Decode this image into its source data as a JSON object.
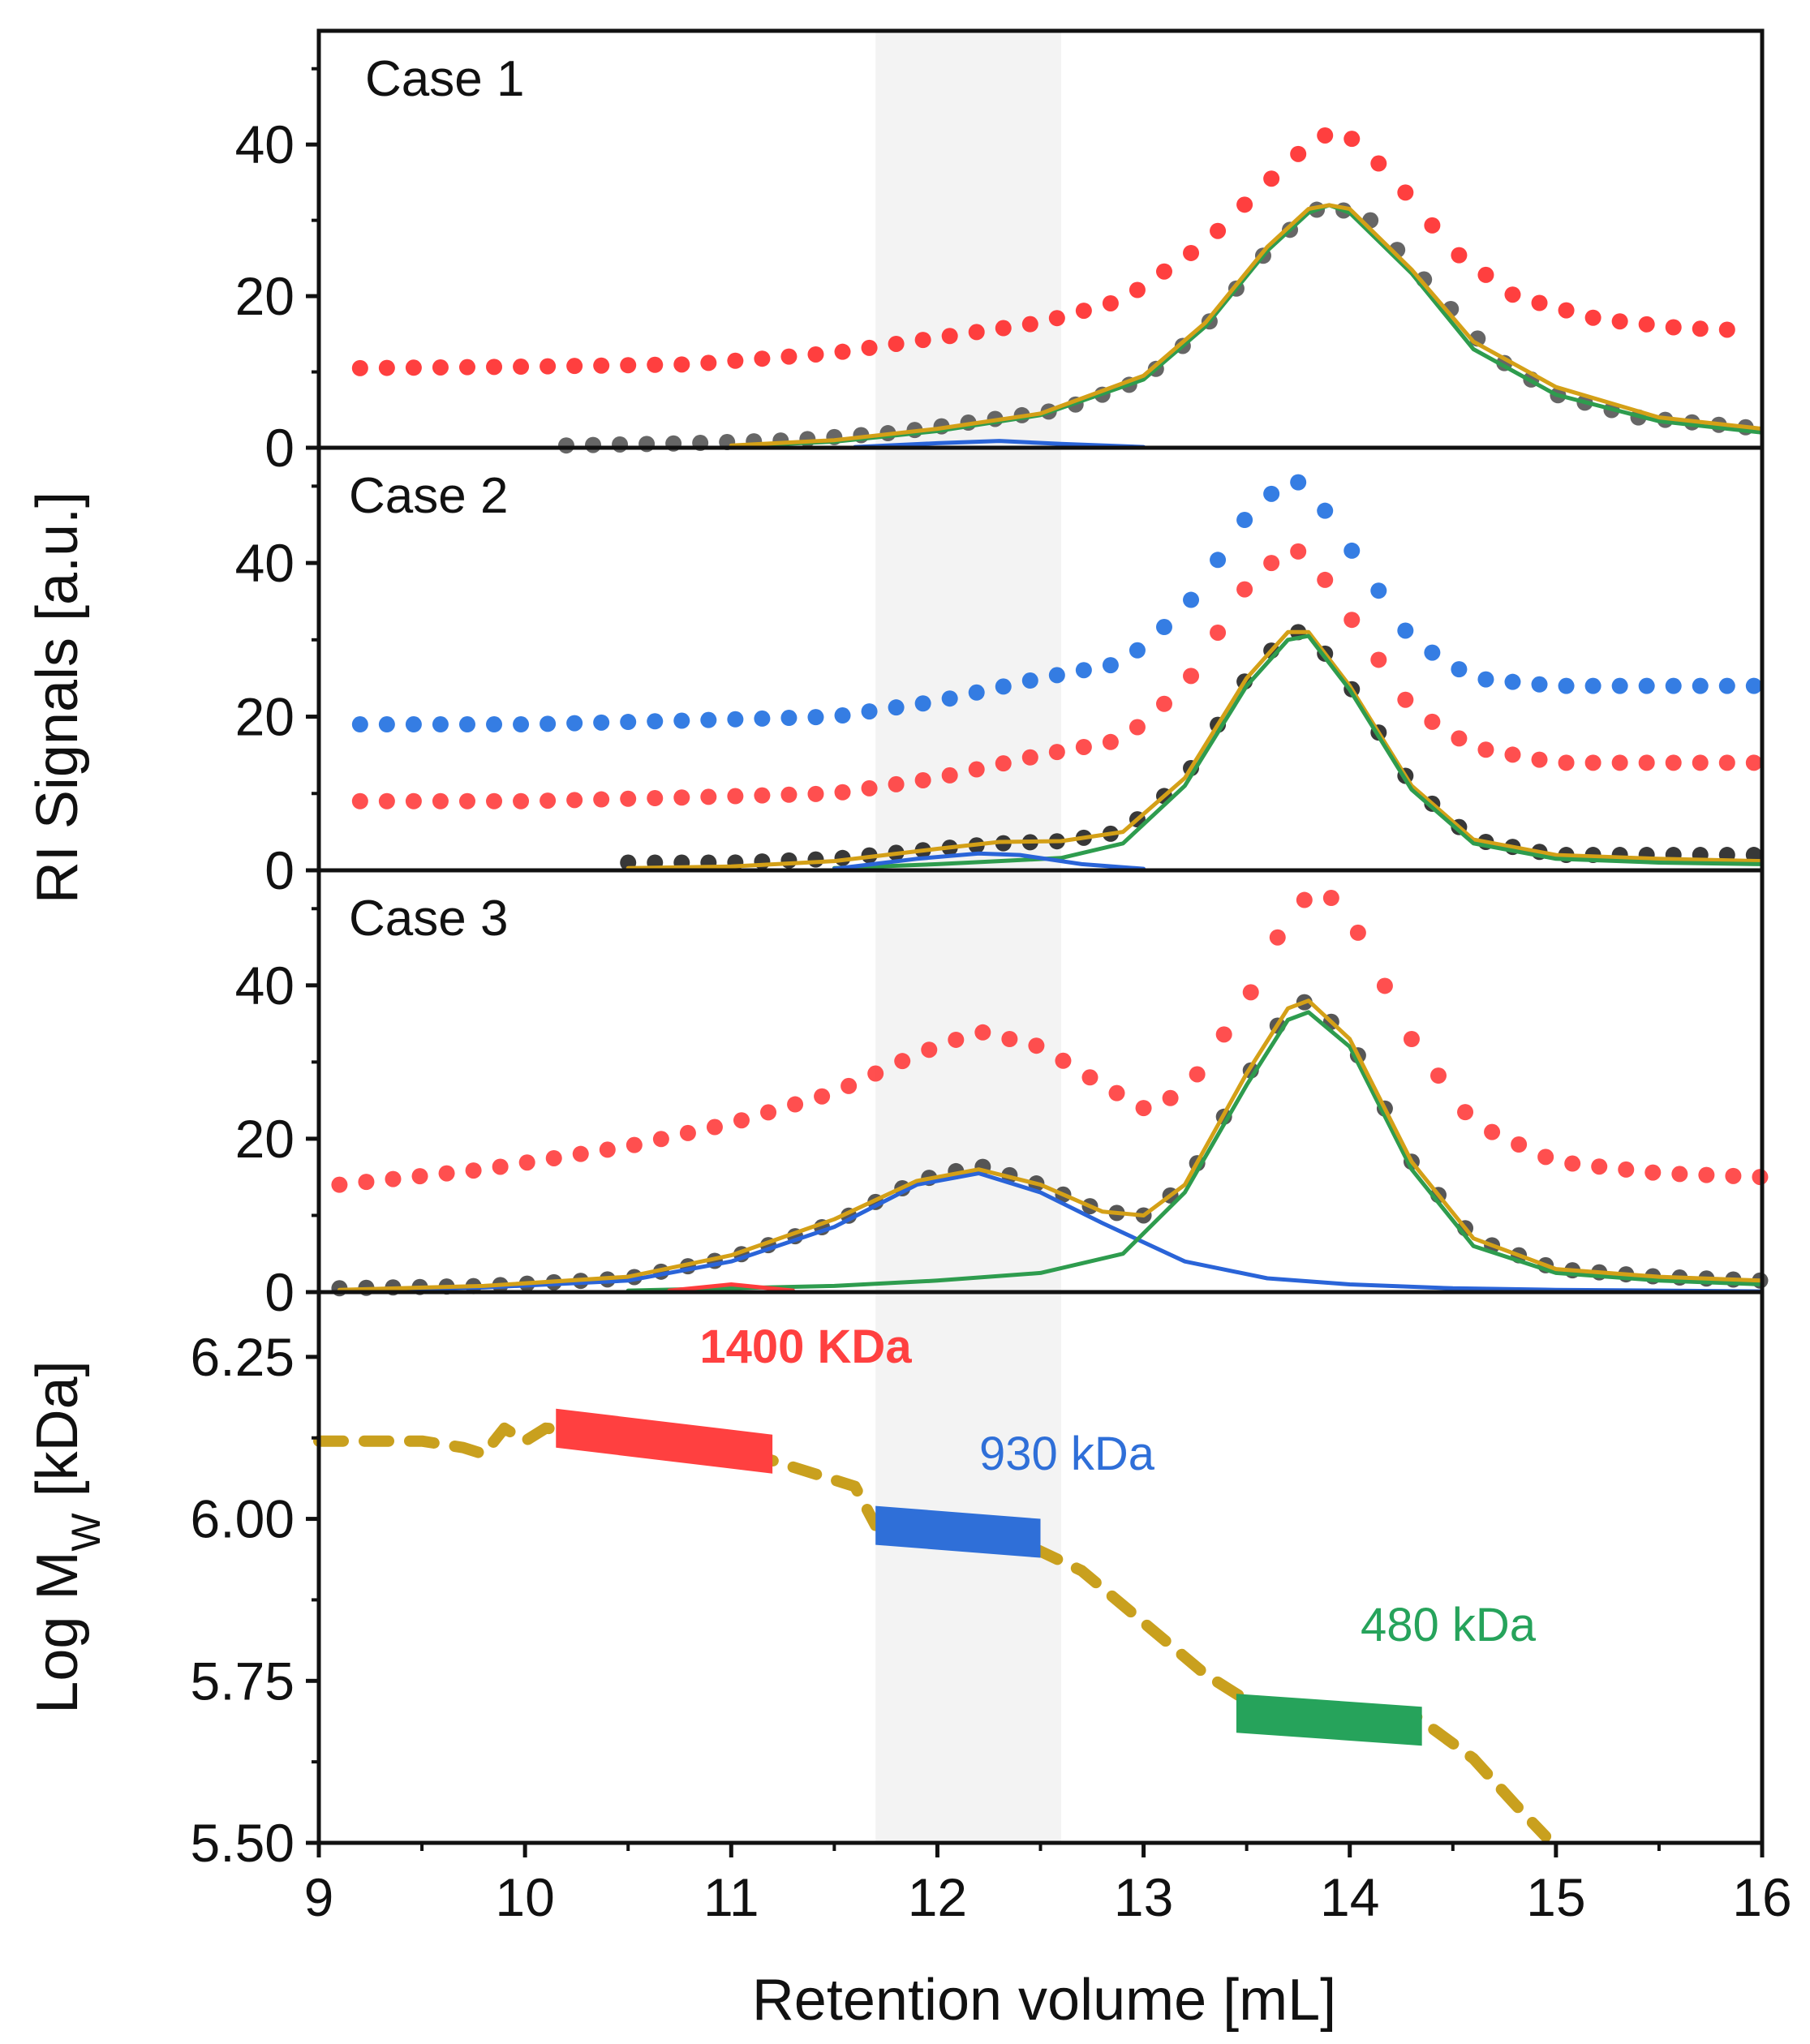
{
  "chart_data": {
    "type": "line",
    "xlabel": "Retention volume [mL]",
    "xlim": [
      9,
      16
    ],
    "x_ticks": [
      "9",
      "10",
      "11",
      "12",
      "13",
      "14",
      "15",
      "16"
    ],
    "shaded_region_x": [
      11.7,
      12.6
    ],
    "shared_ylabel": "RI Signals [a.u.]",
    "panels": [
      {
        "label": "Case 1",
        "ylim": [
          0,
          55
        ],
        "y_ticks": [
          "0",
          "20",
          "40"
        ],
        "series": [
          {
            "color": "#ff2a2a",
            "style": "dots",
            "x": [
              9.2,
              10.0,
              10.8,
              11.5,
              12.0,
              12.5,
              12.9,
              13.3,
              13.6,
              13.8,
              13.9,
              14.0,
              14.2,
              14.5,
              14.8,
              15.2,
              15.6,
              15.9
            ],
            "y": [
              10.5,
              10.7,
              11.0,
              12.5,
              14.5,
              16.5,
              19.5,
              27,
              35,
              40,
              41.5,
              41,
              36,
              26,
              20,
              17,
              15.8,
              15.5
            ]
          },
          {
            "color": "#555555",
            "style": "dots",
            "x": [
              10.2,
              10.8,
              11.3,
              11.8,
              12.2,
              12.6,
              13.0,
              13.3,
              13.6,
              13.8,
              13.9,
              14.1,
              14.4,
              14.7,
              15.0,
              15.4,
              15.8,
              16.0
            ],
            "y": [
              0.3,
              0.6,
              1.0,
              2,
              3.5,
              5,
              9,
              16,
              26,
              31,
              32,
              30,
              21,
              12,
              7,
              4,
              3,
              2.5
            ]
          },
          {
            "color": "#2e9c4e",
            "style": "line",
            "x": [
              11.0,
              11.5,
              12.0,
              12.5,
              13.0,
              13.3,
              13.6,
              13.8,
              13.9,
              14.0,
              14.3,
              14.6,
              15.0,
              15.5,
              16.0
            ],
            "y": [
              0.2,
              0.8,
              2.2,
              4.3,
              9,
              16,
              26,
              31,
              32,
              31,
              23,
              13,
              7,
              3.5,
              2
            ]
          },
          {
            "color": "#d4a017",
            "style": "line",
            "x": [
              11.0,
              11.5,
              12.0,
              12.5,
              13.0,
              13.3,
              13.6,
              13.8,
              13.9,
              14.0,
              14.3,
              14.6,
              15.0,
              15.5,
              16.0
            ],
            "y": [
              0.3,
              1,
              2.5,
              4.5,
              9.5,
              16.5,
              26.5,
              31.5,
              32,
              31.5,
              23.5,
              14,
              8,
              4,
              2.5
            ]
          },
          {
            "color": "#2a64d8",
            "style": "line",
            "x": [
              11.6,
              12.0,
              12.3,
              12.6,
              13.0
            ],
            "y": [
              0.1,
              0.6,
              0.9,
              0.5,
              0.1
            ]
          }
        ]
      },
      {
        "label": "Case 2",
        "ylim": [
          0,
          55
        ],
        "y_ticks": [
          "0",
          "20",
          "40"
        ],
        "series": [
          {
            "color": "#1f6fe0",
            "style": "dots",
            "x": [
              9.2,
              10.0,
              10.8,
              11.5,
              12.0,
              12.5,
              12.9,
              13.2,
              13.5,
              13.7,
              13.8,
              14.0,
              14.3,
              14.6,
              15.0,
              15.5,
              16.0
            ],
            "y": [
              19,
              19,
              19.5,
              20,
              22,
              25,
              27,
              34,
              46,
              51,
              50,
              42,
              30,
              25,
              24,
              24,
              24
            ]
          },
          {
            "color": "#ff3c3c",
            "style": "dots",
            "x": [
              9.2,
              10.0,
              10.8,
              11.5,
              12.0,
              12.5,
              12.9,
              13.2,
              13.5,
              13.7,
              13.8,
              14.0,
              14.3,
              14.6,
              15.0,
              15.5,
              16.0
            ],
            "y": [
              9,
              9,
              9.5,
              10,
              12,
              15,
              17,
              24,
              37,
              42,
              41,
              33,
              21,
              16,
              14,
              14,
              14
            ]
          },
          {
            "color": "#222222",
            "style": "dots",
            "x": [
              10.5,
              11.0,
              11.5,
              12.0,
              12.3,
              12.6,
              12.9,
              13.2,
              13.5,
              13.7,
              13.8,
              14.0,
              14.3,
              14.6,
              15.0,
              15.5,
              16.0
            ],
            "y": [
              1,
              1,
              1.5,
              2.8,
              3.5,
              3.8,
              5,
              12,
              25,
              31,
              31,
              24,
              11,
              4,
              2,
              2,
              2
            ]
          },
          {
            "color": "#d4a017",
            "style": "line",
            "x": [
              10.5,
              11.0,
              11.5,
              12.0,
              12.3,
              12.6,
              12.9,
              13.2,
              13.5,
              13.7,
              13.8,
              14.0,
              14.3,
              14.6,
              15.0,
              15.5,
              16.0
            ],
            "y": [
              0.3,
              0.5,
              1.2,
              2.8,
              3.7,
              3.8,
              5,
              12,
              25,
              31,
              31,
              24,
              11,
              4,
              2,
              1.5,
              1.2
            ]
          },
          {
            "color": "#2e9c4e",
            "style": "line",
            "x": [
              11.5,
              12.0,
              12.3,
              12.6,
              12.9,
              13.2,
              13.5,
              13.7,
              13.8,
              14.0,
              14.3,
              14.6,
              15.0,
              15.5,
              16.0
            ],
            "y": [
              0.3,
              0.8,
              1.2,
              1.6,
              3.5,
              11,
              24,
              30,
              30.5,
              23.5,
              10.5,
              3.5,
              1.5,
              1,
              0.8
            ]
          },
          {
            "color": "#2a64d8",
            "style": "line",
            "x": [
              11.5,
              11.9,
              12.2,
              12.4,
              12.7,
              13.0
            ],
            "y": [
              0.2,
              1.5,
              2.2,
              2.0,
              0.8,
              0.2
            ]
          }
        ]
      },
      {
        "label": "Case 3",
        "ylim": [
          0,
          55
        ],
        "y_ticks": [
          "0",
          "20",
          "40"
        ],
        "series": [
          {
            "color": "#ff3c3c",
            "style": "dots",
            "x": [
              9.1,
              9.8,
              10.5,
              11.0,
              11.5,
              11.9,
              12.2,
              12.5,
              12.8,
              13.0,
              13.2,
              13.5,
              13.7,
              13.85,
              14.0,
              14.3,
              14.6,
              15.0,
              15.5,
              16.0
            ],
            "y": [
              14,
              16,
              19,
              22,
              26,
              31,
              34,
              32,
              27,
              24,
              26,
              38,
              49,
              53,
              49,
              33,
              22,
              17,
              15.5,
              15
            ]
          },
          {
            "color": "#444444",
            "style": "dots",
            "x": [
              9.1,
              9.8,
              10.5,
              11.0,
              11.5,
              11.9,
              12.2,
              12.5,
              12.8,
              13.0,
              13.2,
              13.5,
              13.7,
              13.8,
              14.0,
              14.3,
              14.6,
              15.0,
              15.5,
              16.0
            ],
            "y": [
              0.5,
              0.8,
              1.8,
              4.5,
              9,
              14.5,
              16.5,
              14,
              10.5,
              10,
              14,
              28,
              37,
              38,
              33,
              17,
              7,
              3,
              2,
              1.5
            ]
          },
          {
            "color": "#2a64d8",
            "style": "line",
            "x": [
              9.1,
              9.8,
              10.5,
              11.0,
              11.5,
              11.9,
              12.2,
              12.5,
              12.8,
              13.2,
              13.6,
              14.0,
              14.5,
              15.0,
              16.0
            ],
            "y": [
              0.2,
              0.6,
              1.5,
              4,
              8.5,
              14,
              15.5,
              13,
              9,
              4,
              1.8,
              1,
              0.5,
              0.3,
              0.1
            ]
          },
          {
            "color": "#2e9c4e",
            "style": "line",
            "x": [
              10.5,
              11.5,
              12.0,
              12.5,
              12.9,
              13.2,
              13.5,
              13.7,
              13.8,
              14.0,
              14.3,
              14.6,
              15.0,
              15.5,
              16.0
            ],
            "y": [
              0.2,
              0.8,
              1.5,
              2.5,
              5,
              13,
              27,
              35.5,
              36.5,
              32,
              16,
              6,
              2.5,
              1.5,
              1
            ]
          },
          {
            "color": "#d4a017",
            "style": "line",
            "x": [
              9.1,
              9.8,
              10.5,
              11.0,
              11.5,
              11.9,
              12.2,
              12.5,
              12.8,
              13.0,
              13.2,
              13.5,
              13.7,
              13.8,
              14.0,
              14.3,
              14.6,
              15.0,
              15.5,
              16.0
            ],
            "y": [
              0.3,
              0.8,
              2,
              4.8,
              9.5,
              14.5,
              16,
              14,
              10.5,
              10,
              14,
              28.5,
              37,
              38,
              33,
              17,
              7,
              3,
              2,
              1.5
            ]
          },
          {
            "color": "#ff3c3c",
            "style": "line",
            "x": [
              10.7,
              11.0,
              11.3
            ],
            "y": [
              0.2,
              1.0,
              0.2
            ]
          }
        ]
      },
      {
        "label": "",
        "ylabel": "Log M",
        "ylabel_sub": "W",
        "ylabel_unit": " [kDa]",
        "ylim": [
          5.5,
          6.35
        ],
        "y_ticks": [
          "5.50",
          "5.75",
          "6.00",
          "6.25"
        ],
        "series": [
          {
            "color": "#c9a01e",
            "style": "dashed",
            "x": [
              9.0,
              9.5,
              9.7,
              9.8,
              9.9,
              10.0,
              10.1,
              10.5,
              11.0,
              11.3,
              11.6,
              11.7,
              12.3,
              12.7,
              13.0,
              13.3,
              13.5,
              14.3,
              14.6,
              14.8,
              14.95
            ],
            "y": [
              6.12,
              6.12,
              6.11,
              6.1,
              6.14,
              6.12,
              6.14,
              6.13,
              6.11,
              6.08,
              6.05,
              5.99,
              5.98,
              5.92,
              5.84,
              5.76,
              5.72,
              5.7,
              5.63,
              5.56,
              5.51
            ]
          }
        ],
        "bands": [
          {
            "color": "#ff4040",
            "x": [
              10.15,
              11.2
            ],
            "y_start": 6.14,
            "y_end": 6.1,
            "label": "1400 KDa"
          },
          {
            "color": "#2f6fd8",
            "x": [
              11.7,
              12.5
            ],
            "y_start": 5.99,
            "y_end": 5.97,
            "label": "930 kDa"
          },
          {
            "color": "#26a35b",
            "x": [
              13.45,
              14.35
            ],
            "y_start": 5.7,
            "y_end": 5.68,
            "label": "480 kDa"
          }
        ]
      }
    ]
  }
}
